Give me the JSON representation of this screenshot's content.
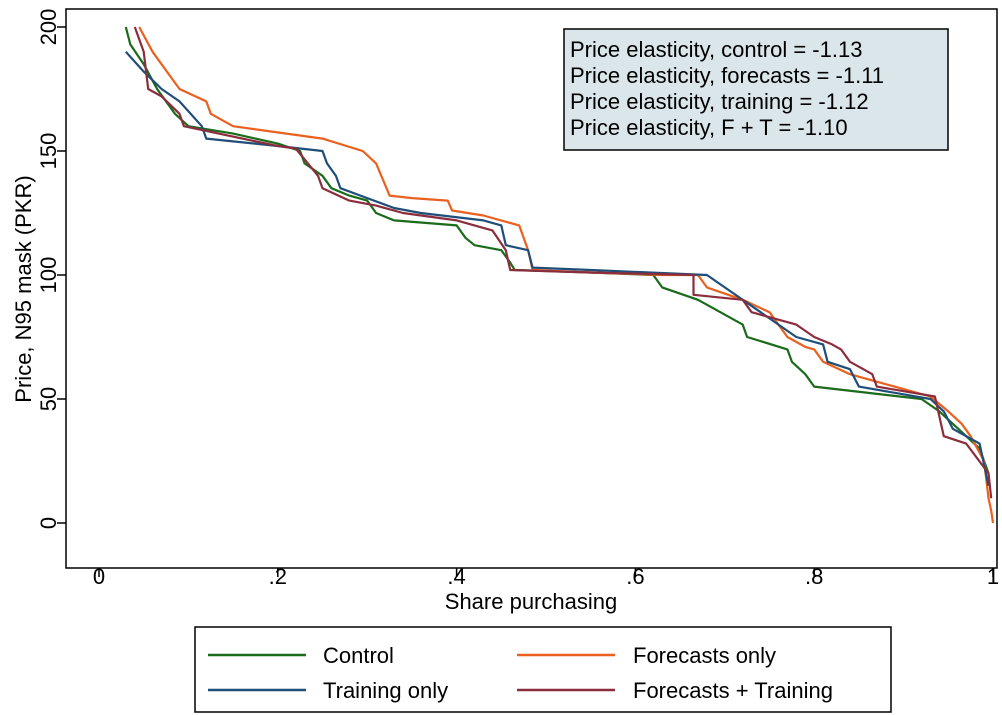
{
  "chart_data": {
    "type": "line",
    "xlabel": "Share purchasing",
    "ylabel": "Price, N95 mask (PKR)",
    "xlim": [
      0,
      1
    ],
    "ylim": [
      0,
      200
    ],
    "x_ticks": [
      {
        "value": 0,
        "label": "0"
      },
      {
        "value": 0.2,
        "label": ".2"
      },
      {
        "value": 0.4,
        "label": ".4"
      },
      {
        "value": 0.6,
        "label": ".6"
      },
      {
        "value": 0.8,
        "label": ".8"
      },
      {
        "value": 1,
        "label": "1"
      }
    ],
    "y_ticks": [
      {
        "value": 0,
        "label": "0"
      },
      {
        "value": 50,
        "label": "50"
      },
      {
        "value": 100,
        "label": "100"
      },
      {
        "value": 150,
        "label": "150"
      },
      {
        "value": 200,
        "label": "200"
      }
    ],
    "grid": false,
    "legend_position": "bottom",
    "annotations": [
      "Price elasticity, control = -1.13",
      "Price elasticity, forecasts = -1.11",
      "Price elasticity, training = -1.12",
      "Price elasticity, F + T = -1.10"
    ],
    "series": [
      {
        "name": "Control",
        "color": "#1a6b1a",
        "points": [
          [
            0.03,
            200
          ],
          [
            0.035,
            193
          ],
          [
            0.05,
            185
          ],
          [
            0.065,
            175
          ],
          [
            0.085,
            165
          ],
          [
            0.1,
            160
          ],
          [
            0.15,
            157
          ],
          [
            0.2,
            153
          ],
          [
            0.225,
            150
          ],
          [
            0.23,
            145
          ],
          [
            0.25,
            140
          ],
          [
            0.26,
            135
          ],
          [
            0.28,
            132
          ],
          [
            0.3,
            130
          ],
          [
            0.31,
            125
          ],
          [
            0.33,
            122
          ],
          [
            0.4,
            120
          ],
          [
            0.41,
            115
          ],
          [
            0.42,
            112
          ],
          [
            0.45,
            110
          ],
          [
            0.46,
            105
          ],
          [
            0.465,
            102
          ],
          [
            0.55,
            101
          ],
          [
            0.62,
            100
          ],
          [
            0.63,
            95
          ],
          [
            0.67,
            90
          ],
          [
            0.72,
            80
          ],
          [
            0.725,
            75
          ],
          [
            0.77,
            70
          ],
          [
            0.775,
            65
          ],
          [
            0.79,
            60
          ],
          [
            0.8,
            55
          ],
          [
            0.92,
            50
          ],
          [
            0.94,
            45
          ],
          [
            0.955,
            40
          ],
          [
            0.97,
            35
          ],
          [
            0.985,
            30
          ],
          [
            0.99,
            25
          ],
          [
            0.995,
            20
          ]
        ]
      },
      {
        "name": "Forecasts only",
        "color": "#e9601f",
        "points": [
          [
            0.045,
            200
          ],
          [
            0.06,
            190
          ],
          [
            0.08,
            180
          ],
          [
            0.09,
            175
          ],
          [
            0.12,
            170
          ],
          [
            0.125,
            165
          ],
          [
            0.15,
            160
          ],
          [
            0.25,
            155
          ],
          [
            0.295,
            150
          ],
          [
            0.31,
            145
          ],
          [
            0.325,
            132
          ],
          [
            0.35,
            131
          ],
          [
            0.39,
            130
          ],
          [
            0.395,
            126
          ],
          [
            0.43,
            124
          ],
          [
            0.47,
            120
          ],
          [
            0.48,
            110
          ],
          [
            0.485,
            102
          ],
          [
            0.55,
            101
          ],
          [
            0.63,
            100
          ],
          [
            0.67,
            100
          ],
          [
            0.68,
            95
          ],
          [
            0.72,
            90
          ],
          [
            0.75,
            85
          ],
          [
            0.77,
            75
          ],
          [
            0.79,
            71
          ],
          [
            0.8,
            70
          ],
          [
            0.81,
            65
          ],
          [
            0.84,
            60
          ],
          [
            0.86,
            58
          ],
          [
            0.93,
            51
          ],
          [
            0.95,
            45
          ],
          [
            0.965,
            40
          ],
          [
            0.975,
            35
          ],
          [
            0.99,
            25
          ],
          [
            0.995,
            10
          ],
          [
            0.998,
            5
          ],
          [
            1.0,
            0
          ]
        ]
      },
      {
        "name": "Training only",
        "color": "#1f4e79",
        "points": [
          [
            0.03,
            190
          ],
          [
            0.05,
            182
          ],
          [
            0.07,
            175
          ],
          [
            0.09,
            170
          ],
          [
            0.115,
            160
          ],
          [
            0.12,
            155
          ],
          [
            0.2,
            152
          ],
          [
            0.25,
            150
          ],
          [
            0.255,
            145
          ],
          [
            0.265,
            140
          ],
          [
            0.27,
            135
          ],
          [
            0.3,
            131
          ],
          [
            0.33,
            127
          ],
          [
            0.36,
            125
          ],
          [
            0.43,
            122
          ],
          [
            0.45,
            120
          ],
          [
            0.455,
            112
          ],
          [
            0.48,
            110
          ],
          [
            0.485,
            103
          ],
          [
            0.55,
            102
          ],
          [
            0.68,
            100
          ],
          [
            0.7,
            95
          ],
          [
            0.74,
            85
          ],
          [
            0.78,
            75
          ],
          [
            0.81,
            72
          ],
          [
            0.815,
            65
          ],
          [
            0.84,
            62
          ],
          [
            0.85,
            55
          ],
          [
            0.93,
            50
          ],
          [
            0.945,
            45
          ],
          [
            0.955,
            38
          ],
          [
            0.97,
            35
          ],
          [
            0.985,
            32
          ],
          [
            0.995,
            15
          ]
        ]
      },
      {
        "name": "Forecasts + Training",
        "color": "#8b2d3d",
        "points": [
          [
            0.04,
            200
          ],
          [
            0.05,
            190
          ],
          [
            0.055,
            175
          ],
          [
            0.07,
            172
          ],
          [
            0.09,
            165
          ],
          [
            0.095,
            160
          ],
          [
            0.2,
            152
          ],
          [
            0.22,
            151
          ],
          [
            0.245,
            140
          ],
          [
            0.25,
            135
          ],
          [
            0.28,
            130
          ],
          [
            0.31,
            128
          ],
          [
            0.34,
            125
          ],
          [
            0.4,
            122
          ],
          [
            0.44,
            118
          ],
          [
            0.455,
            110
          ],
          [
            0.46,
            102
          ],
          [
            0.55,
            101
          ],
          [
            0.665,
            100
          ],
          [
            0.665,
            92
          ],
          [
            0.72,
            90
          ],
          [
            0.73,
            85
          ],
          [
            0.78,
            80
          ],
          [
            0.8,
            75
          ],
          [
            0.82,
            72
          ],
          [
            0.83,
            70
          ],
          [
            0.84,
            65
          ],
          [
            0.865,
            60
          ],
          [
            0.87,
            55
          ],
          [
            0.935,
            51
          ],
          [
            0.945,
            35
          ],
          [
            0.97,
            32
          ],
          [
            0.995,
            20
          ],
          [
            0.998,
            10
          ]
        ]
      }
    ]
  }
}
